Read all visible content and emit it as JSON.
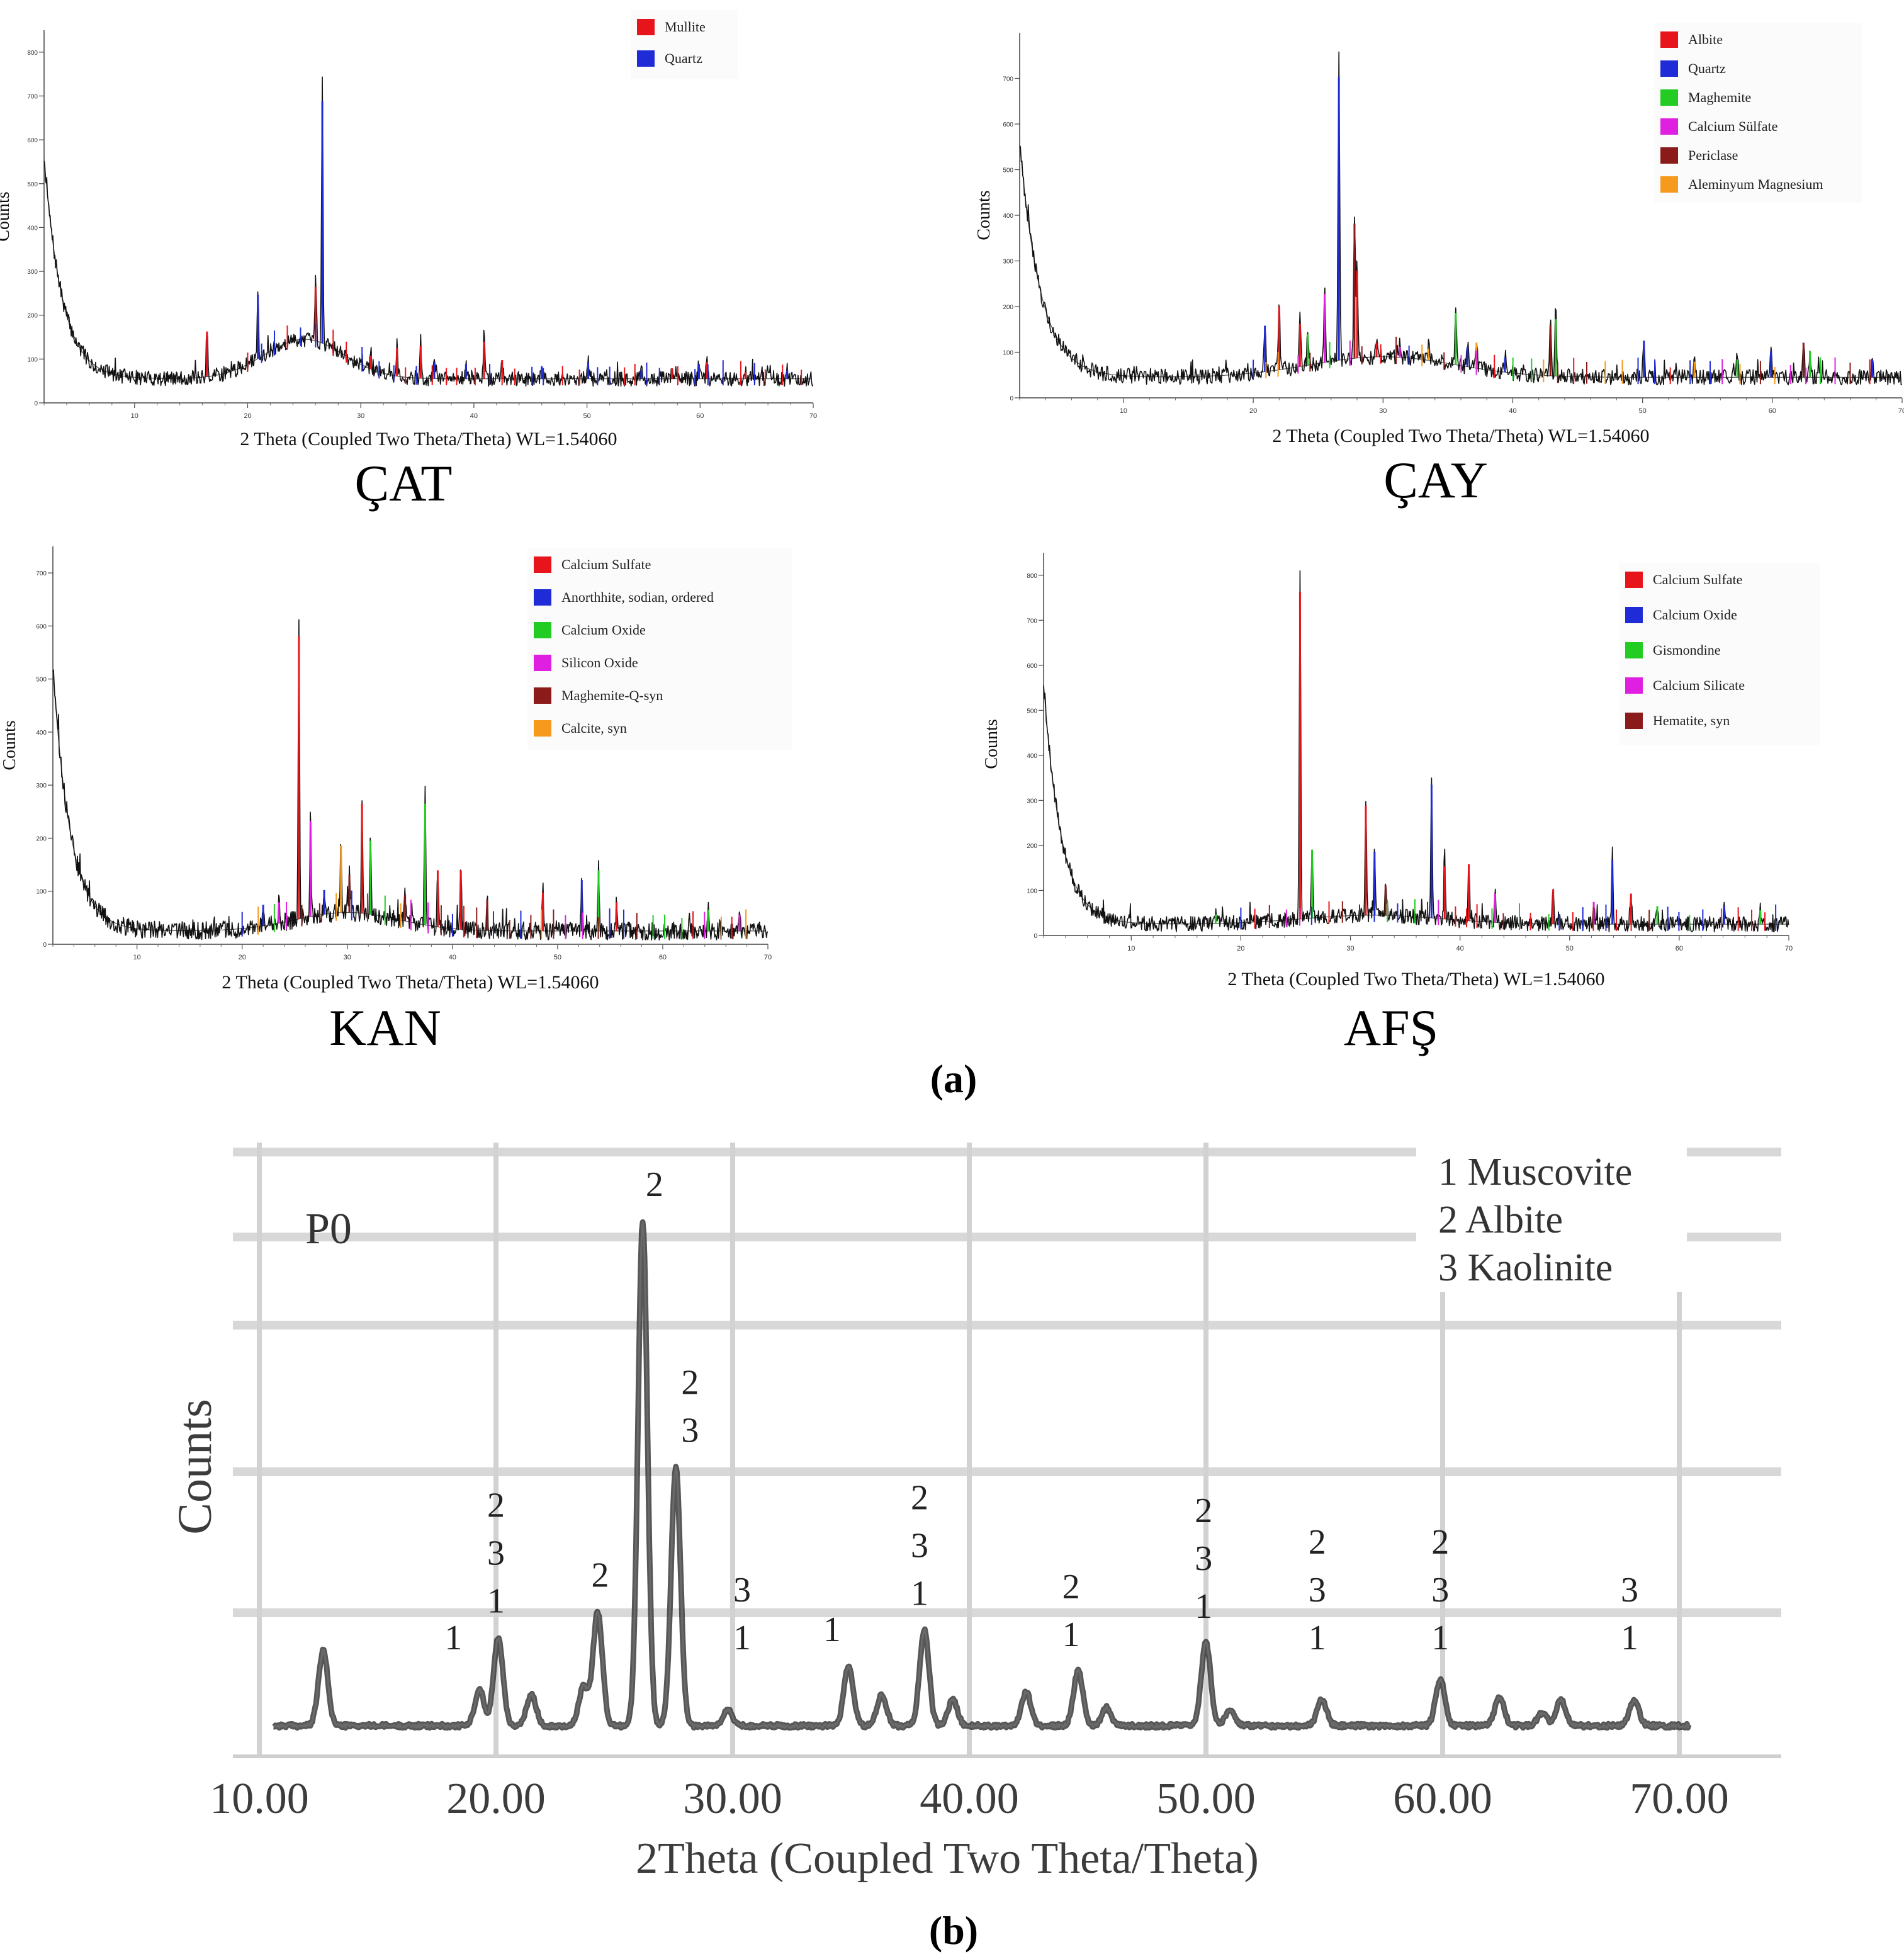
{
  "figure": {
    "panel_a_label": "(a)",
    "panel_b_label": "(b)"
  },
  "chart_data": [
    {
      "id": "cat",
      "type": "line",
      "caption": "ÇAT",
      "xlabel": "2 Theta (Coupled Two Theta/Theta) WL=1.54060",
      "ylabel": "Counts",
      "xlim": [
        2,
        70
      ],
      "ylim": [
        0,
        850
      ],
      "xticks": [
        10,
        20,
        30,
        40,
        50,
        60,
        70
      ],
      "yticks": [
        0,
        100,
        200,
        300,
        400,
        500,
        600,
        700,
        800
      ],
      "baseline": {
        "start": 560,
        "decay": 1.6,
        "floor": 55,
        "hump": 90,
        "hump_center": 25,
        "hump_width": 5
      },
      "legend": [
        {
          "label": "Mullite",
          "color": "#e8141b"
        },
        {
          "label": "Quartz",
          "color": "#1f2bd6"
        }
      ],
      "peaks": [
        {
          "x": 16.4,
          "y": 175,
          "phase": 0
        },
        {
          "x": 20.9,
          "y": 265,
          "phase": 1
        },
        {
          "x": 26.0,
          "y": 285,
          "phase": 0
        },
        {
          "x": 26.6,
          "y": 740,
          "phase": 1
        },
        {
          "x": 30.9,
          "y": 115,
          "phase": 0
        },
        {
          "x": 33.2,
          "y": 135,
          "phase": 0
        },
        {
          "x": 35.3,
          "y": 140,
          "phase": 0
        },
        {
          "x": 36.5,
          "y": 100,
          "phase": 1
        },
        {
          "x": 39.3,
          "y": 95,
          "phase": 1
        },
        {
          "x": 40.9,
          "y": 150,
          "phase": 0
        },
        {
          "x": 42.5,
          "y": 105,
          "phase": 0
        },
        {
          "x": 46.0,
          "y": 90,
          "phase": 1
        },
        {
          "x": 50.1,
          "y": 100,
          "phase": 1
        },
        {
          "x": 54.8,
          "y": 80,
          "phase": 1
        },
        {
          "x": 57.5,
          "y": 85,
          "phase": 0
        },
        {
          "x": 59.9,
          "y": 95,
          "phase": 1
        },
        {
          "x": 60.6,
          "y": 100,
          "phase": 0
        },
        {
          "x": 64.0,
          "y": 75,
          "phase": 0
        },
        {
          "x": 67.7,
          "y": 80,
          "phase": 1
        }
      ]
    },
    {
      "id": "cay",
      "type": "line",
      "caption": "ÇAY",
      "xlabel": "2 Theta (Coupled Two Theta/Theta) WL=1.54060",
      "ylabel": "Counts",
      "xlim": [
        2,
        70
      ],
      "ylim": [
        0,
        800
      ],
      "xticks": [
        10,
        20,
        30,
        40,
        50,
        60,
        70
      ],
      "yticks": [
        0,
        100,
        200,
        300,
        400,
        500,
        600,
        700
      ],
      "baseline": {
        "start": 560,
        "decay": 1.6,
        "floor": 45,
        "hump": 45,
        "hump_center": 30,
        "hump_width": 8
      },
      "legend": [
        {
          "label": "Albite",
          "color": "#e8141b"
        },
        {
          "label": "Quartz",
          "color": "#1f2bd6"
        },
        {
          "label": "Maghemite",
          "color": "#22cc22"
        },
        {
          "label": "Calcium Sülfate",
          "color": "#e020e0"
        },
        {
          "label": "Periclase",
          "color": "#8b1a1a"
        },
        {
          "label": "Aleminyum Magnesium",
          "color": "#f59a1c"
        }
      ],
      "peaks": [
        {
          "x": 20.9,
          "y": 170,
          "phase": 1
        },
        {
          "x": 22.0,
          "y": 215,
          "phase": 0
        },
        {
          "x": 23.6,
          "y": 175,
          "phase": 0
        },
        {
          "x": 24.2,
          "y": 150,
          "phase": 2
        },
        {
          "x": 25.5,
          "y": 245,
          "phase": 3
        },
        {
          "x": 26.6,
          "y": 755,
          "phase": 1
        },
        {
          "x": 27.8,
          "y": 410,
          "phase": 4
        },
        {
          "x": 28.0,
          "y": 300,
          "phase": 0
        },
        {
          "x": 29.5,
          "y": 130,
          "phase": 0
        },
        {
          "x": 31.3,
          "y": 120,
          "phase": 3
        },
        {
          "x": 33.5,
          "y": 115,
          "phase": 5
        },
        {
          "x": 35.6,
          "y": 200,
          "phase": 2
        },
        {
          "x": 36.5,
          "y": 120,
          "phase": 1
        },
        {
          "x": 37.2,
          "y": 130,
          "phase": 5
        },
        {
          "x": 39.4,
          "y": 95,
          "phase": 1
        },
        {
          "x": 42.9,
          "y": 170,
          "phase": 4
        },
        {
          "x": 43.3,
          "y": 185,
          "phase": 2
        },
        {
          "x": 50.1,
          "y": 135,
          "phase": 1
        },
        {
          "x": 54.0,
          "y": 85,
          "phase": 5
        },
        {
          "x": 57.3,
          "y": 90,
          "phase": 2
        },
        {
          "x": 59.9,
          "y": 110,
          "phase": 1
        },
        {
          "x": 62.4,
          "y": 130,
          "phase": 4
        },
        {
          "x": 62.9,
          "y": 110,
          "phase": 2
        },
        {
          "x": 67.7,
          "y": 90,
          "phase": 1
        }
      ]
    },
    {
      "id": "kan",
      "type": "line",
      "caption": "KAN",
      "xlabel": "2 Theta (Coupled Two Theta/Theta) WL=1.54060",
      "ylabel": "Counts",
      "xlim": [
        2,
        70
      ],
      "ylim": [
        0,
        750
      ],
      "xticks": [
        10,
        20,
        30,
        40,
        50,
        60,
        70
      ],
      "yticks": [
        0,
        100,
        200,
        300,
        400,
        500,
        600,
        700
      ],
      "baseline": {
        "start": 520,
        "decay": 1.7,
        "floor": 25,
        "hump": 35,
        "hump_center": 30,
        "hump_width": 7
      },
      "legend": [
        {
          "label": "Calcium Sulfate",
          "color": "#e8141b"
        },
        {
          "label": "Anorthhite, sodian, ordered",
          "color": "#1f2bd6"
        },
        {
          "label": "Calcium Oxide",
          "color": "#22cc22"
        },
        {
          "label": "Silicon Oxide",
          "color": "#e020e0"
        },
        {
          "label": "Maghemite-Q-syn",
          "color": "#8b1a1a"
        },
        {
          "label": "Calcite, syn",
          "color": "#f59a1c"
        }
      ],
      "peaks": [
        {
          "x": 22.0,
          "y": 80,
          "phase": 1
        },
        {
          "x": 23.5,
          "y": 85,
          "phase": 3
        },
        {
          "x": 25.4,
          "y": 625,
          "phase": 0
        },
        {
          "x": 26.5,
          "y": 250,
          "phase": 3
        },
        {
          "x": 27.8,
          "y": 110,
          "phase": 1
        },
        {
          "x": 29.4,
          "y": 200,
          "phase": 5
        },
        {
          "x": 30.2,
          "y": 140,
          "phase": 4
        },
        {
          "x": 31.4,
          "y": 285,
          "phase": 0
        },
        {
          "x": 32.2,
          "y": 210,
          "phase": 2
        },
        {
          "x": 35.5,
          "y": 100,
          "phase": 4
        },
        {
          "x": 37.4,
          "y": 285,
          "phase": 2
        },
        {
          "x": 38.6,
          "y": 150,
          "phase": 0
        },
        {
          "x": 40.8,
          "y": 150,
          "phase": 0
        },
        {
          "x": 43.3,
          "y": 90,
          "phase": 4
        },
        {
          "x": 48.6,
          "y": 105,
          "phase": 0
        },
        {
          "x": 52.3,
          "y": 130,
          "phase": 1
        },
        {
          "x": 53.9,
          "y": 150,
          "phase": 2
        },
        {
          "x": 55.6,
          "y": 85,
          "phase": 0
        },
        {
          "x": 64.3,
          "y": 70,
          "phase": 2
        },
        {
          "x": 67.3,
          "y": 60,
          "phase": 3
        }
      ]
    },
    {
      "id": "afs",
      "type": "line",
      "caption": "AFŞ",
      "xlabel": "2 Theta (Coupled Two Theta/Theta) WL=1.54060",
      "ylabel": "Counts",
      "xlim": [
        2,
        70
      ],
      "ylim": [
        0,
        850
      ],
      "xticks": [
        10,
        20,
        30,
        40,
        50,
        60,
        70
      ],
      "yticks": [
        0,
        100,
        200,
        300,
        400,
        500,
        600,
        700,
        800
      ],
      "baseline": {
        "start": 560,
        "decay": 1.6,
        "floor": 25,
        "hump": 20,
        "hump_center": 32,
        "hump_width": 9
      },
      "legend": [
        {
          "label": "Calcium Sulfate",
          "color": "#e8141b"
        },
        {
          "label": "Calcium Oxide",
          "color": "#1f2bd6"
        },
        {
          "label": "Gismondine",
          "color": "#22cc22"
        },
        {
          "label": "Calcium Silicate",
          "color": "#e020e0"
        },
        {
          "label": "Hematite, syn",
          "color": "#8b1a1a"
        }
      ],
      "peaks": [
        {
          "x": 17.7,
          "y": 50,
          "phase": 2
        },
        {
          "x": 25.4,
          "y": 820,
          "phase": 0
        },
        {
          "x": 26.5,
          "y": 205,
          "phase": 2
        },
        {
          "x": 31.4,
          "y": 310,
          "phase": 0
        },
        {
          "x": 32.2,
          "y": 200,
          "phase": 1
        },
        {
          "x": 33.2,
          "y": 120,
          "phase": 4
        },
        {
          "x": 37.4,
          "y": 360,
          "phase": 1
        },
        {
          "x": 38.6,
          "y": 165,
          "phase": 0
        },
        {
          "x": 40.8,
          "y": 170,
          "phase": 0
        },
        {
          "x": 43.2,
          "y": 100,
          "phase": 3
        },
        {
          "x": 48.5,
          "y": 110,
          "phase": 0
        },
        {
          "x": 52.2,
          "y": 80,
          "phase": 3
        },
        {
          "x": 53.9,
          "y": 180,
          "phase": 1
        },
        {
          "x": 55.6,
          "y": 100,
          "phase": 0
        },
        {
          "x": 58.0,
          "y": 70,
          "phase": 2
        },
        {
          "x": 64.1,
          "y": 70,
          "phase": 1
        },
        {
          "x": 67.4,
          "y": 60,
          "phase": 2
        }
      ]
    },
    {
      "id": "p0",
      "type": "line",
      "title": "P0",
      "xlabel": "2Theta (Coupled Two Theta/Theta)",
      "ylabel": "Counts",
      "xlim": [
        10,
        71
      ],
      "ylim": [
        0,
        1000
      ],
      "xticks": [
        "10.00",
        "20.00",
        "30.00",
        "40.00",
        "50.00",
        "60.00",
        "70.00"
      ],
      "legend": [
        "1 Muscovite",
        "2 Albite",
        "3 Kaolinite"
      ],
      "baseline_level": 25,
      "peaks": [
        {
          "x": 12.7,
          "y": 170
        },
        {
          "x": 19.3,
          "y": 95
        },
        {
          "x": 20.1,
          "y": 195
        },
        {
          "x": 21.5,
          "y": 85
        },
        {
          "x": 23.7,
          "y": 100
        },
        {
          "x": 24.3,
          "y": 245
        },
        {
          "x": 26.2,
          "y": 1000
        },
        {
          "x": 27.6,
          "y": 525
        },
        {
          "x": 29.8,
          "y": 55
        },
        {
          "x": 34.9,
          "y": 140
        },
        {
          "x": 36.3,
          "y": 85
        },
        {
          "x": 38.1,
          "y": 210
        },
        {
          "x": 39.3,
          "y": 75
        },
        {
          "x": 42.4,
          "y": 90
        },
        {
          "x": 44.6,
          "y": 130
        },
        {
          "x": 45.8,
          "y": 60
        },
        {
          "x": 50.0,
          "y": 185
        },
        {
          "x": 51.0,
          "y": 55
        },
        {
          "x": 54.9,
          "y": 75
        },
        {
          "x": 59.9,
          "y": 115
        },
        {
          "x": 62.4,
          "y": 80
        },
        {
          "x": 64.2,
          "y": 50
        },
        {
          "x": 65.0,
          "y": 75
        },
        {
          "x": 68.1,
          "y": 75
        }
      ],
      "annotations": [
        {
          "x": 18.2,
          "lines": [
            "1"
          ]
        },
        {
          "x": 20.0,
          "lines": [
            "2",
            "3",
            "1"
          ]
        },
        {
          "x": 24.4,
          "lines": [
            "2"
          ]
        },
        {
          "x": 26.7,
          "lines": [
            "2"
          ]
        },
        {
          "x": 28.2,
          "lines": [
            "2",
            "3"
          ]
        },
        {
          "x": 30.4,
          "lines": [
            "3",
            "1"
          ]
        },
        {
          "x": 34.2,
          "lines": [
            "1"
          ]
        },
        {
          "x": 37.9,
          "lines": [
            "2",
            "3",
            "1"
          ]
        },
        {
          "x": 44.3,
          "lines": [
            "2",
            "1"
          ]
        },
        {
          "x": 49.9,
          "lines": [
            "2",
            "3",
            "1"
          ]
        },
        {
          "x": 54.7,
          "lines": [
            "2",
            "3",
            "1"
          ]
        },
        {
          "x": 59.9,
          "lines": [
            "2",
            "3",
            "1"
          ]
        },
        {
          "x": 67.9,
          "lines": [
            "3",
            "1"
          ]
        }
      ]
    }
  ]
}
